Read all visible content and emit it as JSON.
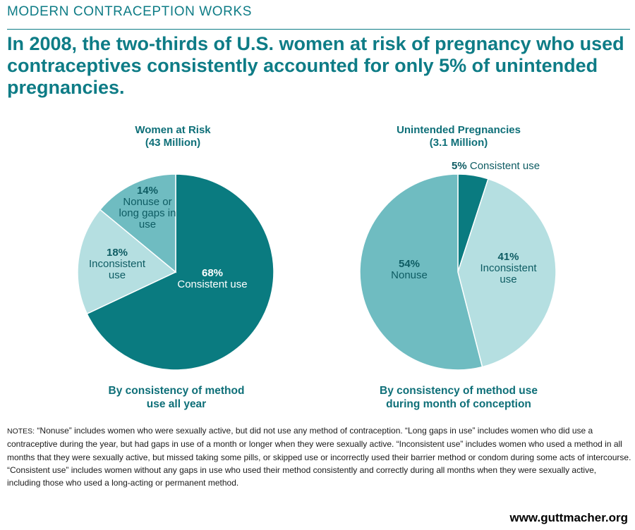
{
  "header": {
    "kicker": "MODERN CONTRACEPTION WORKS",
    "headline": "In 2008, the two-thirds of U.S. women at risk of pregnancy who used contraceptives consistently accounted for only 5% of unintended pregnancies."
  },
  "colors": {
    "dark_teal": "#0a7b80",
    "medium_teal": "#6fbcc1",
    "light_teal": "#b5dfe1",
    "text_teal": "#0e7c86"
  },
  "chart_data": [
    {
      "type": "pie",
      "title": "Women at Risk",
      "subtitle": "(43 Million)",
      "caption_line1": "By consistency of method",
      "caption_line2": "use all year",
      "slices": [
        {
          "label": "Consistent use",
          "pct_text": "68%",
          "value": 68,
          "color": "#0a7b80"
        },
        {
          "label": "Inconsistent use",
          "pct_text": "18%",
          "value": 18,
          "color": "#b5dfe1"
        },
        {
          "label": "Nonuse or long gaps in use",
          "pct_text": "14%",
          "value": 14,
          "color": "#6fbcc1"
        }
      ]
    },
    {
      "type": "pie",
      "title": "Unintended Pregnancies",
      "subtitle": "(3.1 Million)",
      "caption_line1": "By consistency of method use",
      "caption_line2": "during month of conception",
      "slices": [
        {
          "label": "Consistent use",
          "pct_text": "5%",
          "value": 5,
          "color": "#0a7b80"
        },
        {
          "label": "Inconsistent use",
          "pct_text": "41%",
          "value": 41,
          "color": "#b5dfe1"
        },
        {
          "label": "Nonuse",
          "pct_text": "54%",
          "value": 54,
          "color": "#6fbcc1"
        }
      ]
    }
  ],
  "notes": {
    "head": "NOTES:",
    "text": " “Nonuse” includes women who were sexually active, but did not use any method of contraception. “Long gaps in use” includes women who did use a contraceptive during the year, but had gaps in use of a month or longer when they were sexually active. “Inconsistent use” includes women who used a method in all months that they were sexually active, but  missed taking some pills, or skipped use or incorrectly used their barrier method or condom during some acts of intercourse. “Consistent use” includes women without any gaps in use who used their method consistently and correctly during all months when they were sexually active, including those who used a long-acting or permanent method."
  },
  "brand": "www.guttmacher.org"
}
